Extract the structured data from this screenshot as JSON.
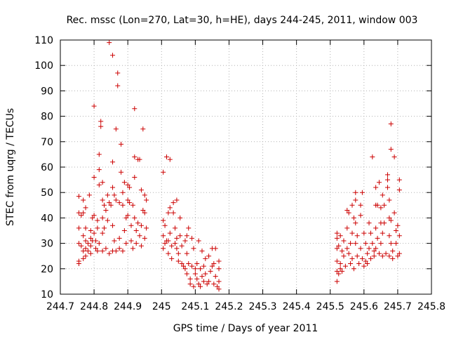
{
  "chart_data": {
    "type": "scatter",
    "title": "Rec. mssc (Lon=270, Lat=30, h=HE), days 244-245, 2011, window 003",
    "xlabel": "GPS time / Days of year 2011",
    "ylabel": "STEC from uqrg / TECUs",
    "xlim": [
      244.7,
      245.8
    ],
    "ylim": [
      10,
      110
    ],
    "xticks": [
      244.7,
      244.8,
      244.9,
      245.0,
      245.1,
      245.2,
      245.3,
      245.4,
      245.5,
      245.6,
      245.7,
      245.8
    ],
    "xtick_labels": [
      "244.7",
      "244.8",
      "244.9",
      "245",
      "245.1",
      "245.2",
      "245.3",
      "245.4",
      "245.5",
      "245.6",
      "245.7",
      "245.8"
    ],
    "yticks": [
      10,
      20,
      30,
      40,
      50,
      60,
      70,
      80,
      90,
      100,
      110
    ],
    "ytick_labels": [
      "10",
      "20",
      "30",
      "40",
      "50",
      "60",
      "70",
      "80",
      "90",
      "100",
      "110"
    ],
    "grid": true,
    "marker": "+",
    "color": "#cc0000",
    "points": [
      [
        244.755,
        48.5
      ],
      [
        244.755,
        42
      ],
      [
        244.755,
        36
      ],
      [
        244.755,
        30
      ],
      [
        244.755,
        23
      ],
      [
        244.755,
        22
      ],
      [
        244.762,
        41
      ],
      [
        244.762,
        29
      ],
      [
        244.768,
        47
      ],
      [
        244.768,
        42
      ],
      [
        244.768,
        33
      ],
      [
        244.768,
        27
      ],
      [
        244.768,
        24
      ],
      [
        244.775,
        44
      ],
      [
        244.775,
        36
      ],
      [
        244.775,
        31
      ],
      [
        244.775,
        28
      ],
      [
        244.775,
        25
      ],
      [
        244.782,
        30
      ],
      [
        244.782,
        27
      ],
      [
        244.786,
        49
      ],
      [
        244.79,
        35
      ],
      [
        244.79,
        32
      ],
      [
        244.79,
        29
      ],
      [
        244.79,
        26
      ],
      [
        244.795,
        40
      ],
      [
        244.795,
        31
      ],
      [
        244.8,
        84
      ],
      [
        244.8,
        56
      ],
      [
        244.8,
        41
      ],
      [
        244.8,
        34
      ],
      [
        244.805,
        31
      ],
      [
        244.805,
        28
      ],
      [
        244.81,
        39
      ],
      [
        244.81,
        36
      ],
      [
        244.81,
        27
      ],
      [
        244.815,
        65
      ],
      [
        244.815,
        59
      ],
      [
        244.815,
        53
      ],
      [
        244.815,
        30
      ],
      [
        244.82,
        78
      ],
      [
        244.82,
        76
      ],
      [
        244.825,
        54
      ],
      [
        244.825,
        47
      ],
      [
        244.825,
        40
      ],
      [
        244.825,
        34
      ],
      [
        244.825,
        27
      ],
      [
        244.83,
        45
      ],
      [
        244.83,
        36
      ],
      [
        244.835,
        43
      ],
      [
        244.835,
        28
      ],
      [
        244.84,
        49
      ],
      [
        244.84,
        39
      ],
      [
        244.845,
        109
      ],
      [
        244.845,
        46
      ],
      [
        244.845,
        26
      ],
      [
        244.85,
        45
      ],
      [
        244.855,
        104
      ],
      [
        244.855,
        62
      ],
      [
        244.855,
        52
      ],
      [
        244.855,
        37
      ],
      [
        244.855,
        27
      ],
      [
        244.86,
        49
      ],
      [
        244.86,
        31
      ],
      [
        244.865,
        75
      ],
      [
        244.865,
        47
      ],
      [
        244.865,
        27
      ],
      [
        244.87,
        97
      ],
      [
        244.87,
        92
      ],
      [
        244.875,
        46
      ],
      [
        244.875,
        32
      ],
      [
        244.875,
        28
      ],
      [
        244.88,
        69
      ],
      [
        244.88,
        58
      ],
      [
        244.885,
        50
      ],
      [
        244.885,
        45
      ],
      [
        244.885,
        27
      ],
      [
        244.89,
        54
      ],
      [
        244.89,
        35
      ],
      [
        244.895,
        40
      ],
      [
        244.895,
        30
      ],
      [
        244.9,
        53
      ],
      [
        244.9,
        47
      ],
      [
        244.9,
        41
      ],
      [
        244.905,
        52
      ],
      [
        244.905,
        46
      ],
      [
        244.91,
        37
      ],
      [
        244.91,
        31
      ],
      [
        244.915,
        45
      ],
      [
        244.915,
        28
      ],
      [
        244.92,
        83
      ],
      [
        244.92,
        64
      ],
      [
        244.92,
        56
      ],
      [
        244.92,
        40
      ],
      [
        244.925,
        35
      ],
      [
        244.925,
        30
      ],
      [
        244.93,
        63
      ],
      [
        244.93,
        38
      ],
      [
        244.935,
        63
      ],
      [
        244.935,
        33
      ],
      [
        244.94,
        51
      ],
      [
        244.94,
        37
      ],
      [
        244.94,
        29
      ],
      [
        244.945,
        75
      ],
      [
        244.945,
        43
      ],
      [
        244.95,
        49
      ],
      [
        244.95,
        42
      ],
      [
        244.95,
        32
      ],
      [
        244.955,
        47
      ],
      [
        244.955,
        36
      ],
      [
        245.005,
        58
      ],
      [
        245.005,
        39
      ],
      [
        245.005,
        33
      ],
      [
        245.005,
        28
      ],
      [
        245.01,
        37
      ],
      [
        245.01,
        30
      ],
      [
        245.015,
        64
      ],
      [
        245.015,
        31
      ],
      [
        245.02,
        42
      ],
      [
        245.02,
        31
      ],
      [
        245.02,
        26
      ],
      [
        245.025,
        63
      ],
      [
        245.025,
        44
      ],
      [
        245.025,
        34
      ],
      [
        245.03,
        29
      ],
      [
        245.03,
        24
      ],
      [
        245.035,
        46
      ],
      [
        245.035,
        42
      ],
      [
        245.04,
        36
      ],
      [
        245.04,
        30
      ],
      [
        245.045,
        47
      ],
      [
        245.045,
        32
      ],
      [
        245.045,
        28
      ],
      [
        245.05,
        26
      ],
      [
        245.05,
        23
      ],
      [
        245.055,
        40
      ],
      [
        245.055,
        33
      ],
      [
        245.06,
        29
      ],
      [
        245.06,
        22
      ],
      [
        245.065,
        21
      ],
      [
        245.07,
        31
      ],
      [
        245.07,
        20
      ],
      [
        245.075,
        33
      ],
      [
        245.075,
        26
      ],
      [
        245.075,
        18
      ],
      [
        245.08,
        36
      ],
      [
        245.08,
        22
      ],
      [
        245.085,
        16
      ],
      [
        245.085,
        14
      ],
      [
        245.09,
        32
      ],
      [
        245.09,
        21
      ],
      [
        245.095,
        28
      ],
      [
        245.095,
        13
      ],
      [
        245.1,
        20
      ],
      [
        245.1,
        18
      ],
      [
        245.105,
        22
      ],
      [
        245.105,
        16
      ],
      [
        245.11,
        31
      ],
      [
        245.11,
        14
      ],
      [
        245.115,
        20
      ],
      [
        245.115,
        13
      ],
      [
        245.12,
        27
      ],
      [
        245.12,
        17
      ],
      [
        245.125,
        21
      ],
      [
        245.125,
        15
      ],
      [
        245.13,
        24
      ],
      [
        245.13,
        18
      ],
      [
        245.135,
        14
      ],
      [
        245.14,
        25
      ],
      [
        245.14,
        15
      ],
      [
        245.145,
        19
      ],
      [
        245.15,
        28
      ],
      [
        245.15,
        21
      ],
      [
        245.155,
        22
      ],
      [
        245.155,
        14
      ],
      [
        245.16,
        28
      ],
      [
        245.16,
        17
      ],
      [
        245.165,
        13
      ],
      [
        245.17,
        23
      ],
      [
        245.17,
        20
      ],
      [
        245.17,
        15
      ],
      [
        245.17,
        12
      ],
      [
        245.52,
        34
      ],
      [
        245.52,
        32
      ],
      [
        245.52,
        28
      ],
      [
        245.52,
        23
      ],
      [
        245.52,
        19
      ],
      [
        245.52,
        15
      ],
      [
        245.525,
        29
      ],
      [
        245.525,
        18
      ],
      [
        245.53,
        33
      ],
      [
        245.53,
        22
      ],
      [
        245.53,
        20
      ],
      [
        245.535,
        27
      ],
      [
        245.535,
        19
      ],
      [
        245.54,
        31
      ],
      [
        245.54,
        25
      ],
      [
        245.545,
        21
      ],
      [
        245.55,
        43
      ],
      [
        245.55,
        36
      ],
      [
        245.55,
        28
      ],
      [
        245.555,
        42
      ],
      [
        245.555,
        26
      ],
      [
        245.56,
        30
      ],
      [
        245.56,
        22
      ],
      [
        245.565,
        45
      ],
      [
        245.565,
        34
      ],
      [
        245.565,
        24
      ],
      [
        245.57,
        40
      ],
      [
        245.57,
        20
      ],
      [
        245.575,
        50
      ],
      [
        245.575,
        47
      ],
      [
        245.575,
        38
      ],
      [
        245.575,
        30
      ],
      [
        245.58,
        33
      ],
      [
        245.58,
        25
      ],
      [
        245.585,
        22
      ],
      [
        245.59,
        45
      ],
      [
        245.59,
        41
      ],
      [
        245.59,
        28
      ],
      [
        245.595,
        50
      ],
      [
        245.595,
        24
      ],
      [
        245.6,
        34
      ],
      [
        245.6,
        21
      ],
      [
        245.605,
        30
      ],
      [
        245.605,
        23
      ],
      [
        245.61,
        26
      ],
      [
        245.61,
        22
      ],
      [
        245.615,
        38
      ],
      [
        245.615,
        28
      ],
      [
        245.62,
        34
      ],
      [
        245.62,
        24
      ],
      [
        245.625,
        64
      ],
      [
        245.625,
        30
      ],
      [
        245.63,
        27
      ],
      [
        245.63,
        25
      ],
      [
        245.635,
        52
      ],
      [
        245.635,
        45
      ],
      [
        245.635,
        36
      ],
      [
        245.635,
        28
      ],
      [
        245.64,
        45
      ],
      [
        245.64,
        32
      ],
      [
        245.645,
        54
      ],
      [
        245.645,
        26
      ],
      [
        245.65,
        44
      ],
      [
        245.65,
        38
      ],
      [
        245.65,
        30
      ],
      [
        245.655,
        49
      ],
      [
        245.655,
        34
      ],
      [
        245.655,
        25
      ],
      [
        245.66,
        45
      ],
      [
        245.66,
        38
      ],
      [
        245.665,
        26
      ],
      [
        245.67,
        55
      ],
      [
        245.67,
        57
      ],
      [
        245.67,
        52
      ],
      [
        245.675,
        47
      ],
      [
        245.675,
        40
      ],
      [
        245.675,
        33
      ],
      [
        245.675,
        25
      ],
      [
        245.68,
        77
      ],
      [
        245.68,
        67
      ],
      [
        245.68,
        39
      ],
      [
        245.68,
        30
      ],
      [
        245.685,
        27
      ],
      [
        245.685,
        24
      ],
      [
        245.69,
        64
      ],
      [
        245.69,
        42
      ],
      [
        245.695,
        35
      ],
      [
        245.695,
        30
      ],
      [
        245.7,
        37
      ],
      [
        245.7,
        25
      ],
      [
        245.705,
        55
      ],
      [
        245.705,
        51
      ],
      [
        245.705,
        33
      ],
      [
        245.705,
        26
      ]
    ]
  }
}
